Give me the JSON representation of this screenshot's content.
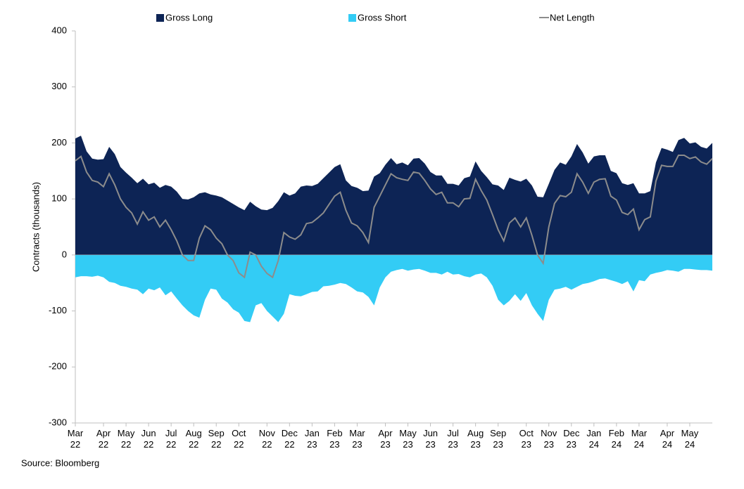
{
  "chart_data": {
    "type": "area",
    "y_label": "Contracts (thousands)",
    "source": "Source: Bloomberg",
    "ylim": [
      -300,
      400
    ],
    "yticks": [
      -300,
      -200,
      -100,
      0,
      100,
      200,
      300,
      400
    ],
    "legend": "top",
    "categories": [
      "Mar 22",
      null,
      null,
      null,
      null,
      "Apr 22",
      null,
      null,
      null,
      "May 22",
      null,
      null,
      null,
      "Jun 22",
      null,
      null,
      null,
      "Jul 22",
      null,
      null,
      null,
      "Aug 22",
      null,
      null,
      null,
      "Sep 22",
      null,
      null,
      null,
      "Oct 22",
      null,
      null,
      null,
      null,
      "Nov 22",
      null,
      null,
      null,
      "Dec 22",
      null,
      null,
      null,
      "Jan 23",
      null,
      null,
      null,
      "Feb 23",
      null,
      null,
      null,
      "Mar 23",
      null,
      null,
      null,
      null,
      "Apr 23",
      null,
      null,
      null,
      "May 23",
      null,
      null,
      null,
      "Jun 23",
      null,
      null,
      null,
      "Jul 23",
      null,
      null,
      null,
      "Aug 23",
      null,
      null,
      null,
      "Sep 23",
      null,
      null,
      null,
      null,
      "Oct 23",
      null,
      null,
      null,
      "Nov 23",
      null,
      null,
      null,
      "Dec 23",
      null,
      null,
      null,
      "Jan 24",
      null,
      null,
      null,
      "Feb 24",
      null,
      null,
      null,
      "Mar 24",
      null,
      null,
      null,
      null,
      "Apr 24",
      null,
      null,
      null,
      "May 24",
      null,
      null,
      null,
      null
    ],
    "series": [
      {
        "name": "Gross Long",
        "color": "#0d2455",
        "kind": "area",
        "values": [
          208,
          213,
          185,
          172,
          170,
          171,
          193,
          180,
          157,
          147,
          138,
          128,
          136,
          126,
          129,
          120,
          125,
          122,
          113,
          100,
          99,
          103,
          110,
          112,
          108,
          106,
          103,
          97,
          91,
          85,
          80,
          95,
          87,
          81,
          80,
          84,
          96,
          112,
          106,
          110,
          122,
          124,
          123,
          127,
          137,
          147,
          157,
          162,
          133,
          123,
          120,
          114,
          115,
          140,
          146,
          161,
          173,
          162,
          165,
          160,
          172,
          173,
          163,
          148,
          142,
          142,
          127,
          127,
          124,
          137,
          140,
          167,
          150,
          139,
          126,
          124,
          116,
          138,
          134,
          131,
          136,
          124,
          104,
          103,
          127,
          152,
          165,
          161,
          176,
          198,
          183,
          163,
          176,
          178,
          178,
          150,
          146,
          128,
          125,
          128,
          110,
          110,
          114,
          165,
          191,
          188,
          184,
          205,
          209,
          199,
          201,
          193,
          190,
          200
        ]
      },
      {
        "name": "Gross Short",
        "color": "#33ccf5",
        "kind": "area",
        "values": [
          -40,
          -38,
          -38,
          -39,
          -37,
          -40,
          -48,
          -50,
          -55,
          -57,
          -60,
          -62,
          -70,
          -60,
          -63,
          -58,
          -72,
          -65,
          -78,
          -90,
          -100,
          -108,
          -112,
          -80,
          -60,
          -62,
          -78,
          -85,
          -97,
          -103,
          -118,
          -120,
          -90,
          -86,
          -100,
          -110,
          -120,
          -105,
          -70,
          -73,
          -74,
          -70,
          -66,
          -65,
          -56,
          -55,
          -53,
          -50,
          -52,
          -58,
          -65,
          -67,
          -75,
          -90,
          -58,
          -40,
          -30,
          -27,
          -25,
          -28,
          -26,
          -25,
          -28,
          -32,
          -32,
          -35,
          -30,
          -35,
          -34,
          -38,
          -40,
          -35,
          -33,
          -40,
          -55,
          -80,
          -90,
          -82,
          -70,
          -82,
          -68,
          -90,
          -105,
          -118,
          -80,
          -62,
          -60,
          -57,
          -62,
          -57,
          -52,
          -50,
          -47,
          -43,
          -42,
          -45,
          -48,
          -52,
          -47,
          -65,
          -45,
          -47,
          -35,
          -32,
          -30,
          -27,
          -28,
          -30,
          -25,
          -25,
          -26,
          -27,
          -27,
          -28
        ]
      },
      {
        "name": "Net Length",
        "color": "#8c8c8c",
        "kind": "line",
        "values": [
          168,
          176,
          148,
          133,
          130,
          122,
          145,
          125,
          100,
          85,
          75,
          55,
          77,
          62,
          68,
          50,
          62,
          45,
          25,
          0,
          -10,
          -10,
          30,
          52,
          45,
          30,
          20,
          0,
          -10,
          -32,
          -40,
          5,
          0,
          -20,
          -33,
          -40,
          -10,
          40,
          32,
          28,
          36,
          56,
          58,
          66,
          75,
          90,
          105,
          112,
          80,
          57,
          52,
          40,
          22,
          85,
          105,
          125,
          145,
          138,
          135,
          133,
          148,
          146,
          133,
          118,
          108,
          112,
          93,
          93,
          86,
          100,
          101,
          135,
          115,
          98,
          72,
          45,
          25,
          57,
          66,
          50,
          66,
          35,
          0,
          -15,
          50,
          92,
          106,
          104,
          112,
          145,
          130,
          110,
          130,
          135,
          136,
          105,
          98,
          76,
          72,
          82,
          45,
          63,
          68,
          132,
          160,
          158,
          158,
          178,
          178,
          172,
          175,
          166,
          162,
          172
        ]
      }
    ]
  }
}
